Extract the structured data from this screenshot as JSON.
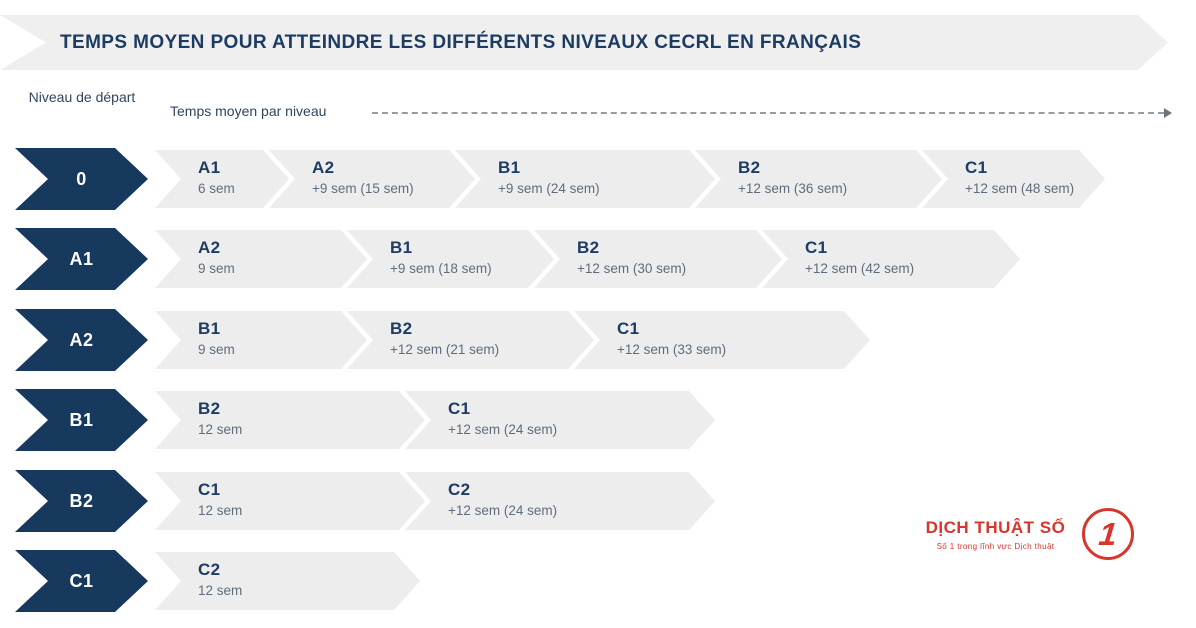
{
  "title": "TEMPS MOYEN POUR ATTEINDRE LES DIFFÉRENTS NIVEAUX CECRL EN FRANÇAIS",
  "axis": {
    "start_label": "Niveau de départ",
    "timeline_label": "Temps moyen par niveau"
  },
  "colors": {
    "navy": "#17395E",
    "band_gray": "#EDEDED",
    "header_gray": "#EFEFEF",
    "text_navy": "#1D3C63",
    "text_sub": "#5E6D7D",
    "brand_red": "#D8352C"
  },
  "rows": [
    {
      "start": "0",
      "segments": [
        {
          "level": "A1",
          "time": "6 sem"
        },
        {
          "level": "A2",
          "time": "+9 sem (15 sem)"
        },
        {
          "level": "B1",
          "time": "+9 sem (24 sem)"
        },
        {
          "level": "B2",
          "time": "+12 sem (36 sem)"
        },
        {
          "level": "C1",
          "time": "+12 sem (48 sem)"
        }
      ]
    },
    {
      "start": "A1",
      "segments": [
        {
          "level": "A2",
          "time": "9 sem"
        },
        {
          "level": "B1",
          "time": "+9 sem (18 sem)"
        },
        {
          "level": "B2",
          "time": "+12 sem (30 sem)"
        },
        {
          "level": "C1",
          "time": "+12 sem (42 sem)"
        }
      ]
    },
    {
      "start": "A2",
      "segments": [
        {
          "level": "B1",
          "time": "9 sem"
        },
        {
          "level": "B2",
          "time": "+12 sem (21 sem)"
        },
        {
          "level": "C1",
          "time": "+12 sem (33 sem)"
        }
      ]
    },
    {
      "start": "B1",
      "segments": [
        {
          "level": "B2",
          "time": "12 sem"
        },
        {
          "level": "C1",
          "time": "+12 sem (24 sem)"
        }
      ]
    },
    {
      "start": "B2",
      "segments": [
        {
          "level": "C1",
          "time": "12 sem"
        },
        {
          "level": "C2",
          "time": "+12 sem (24 sem)"
        }
      ]
    },
    {
      "start": "C1",
      "segments": [
        {
          "level": "C2",
          "time": "12 sem"
        }
      ]
    }
  ],
  "logo": {
    "name": "DỊCH THUẬT SỐ",
    "tagline": "Số 1 trong lĩnh vực Dịch thuật",
    "badge": "1"
  }
}
